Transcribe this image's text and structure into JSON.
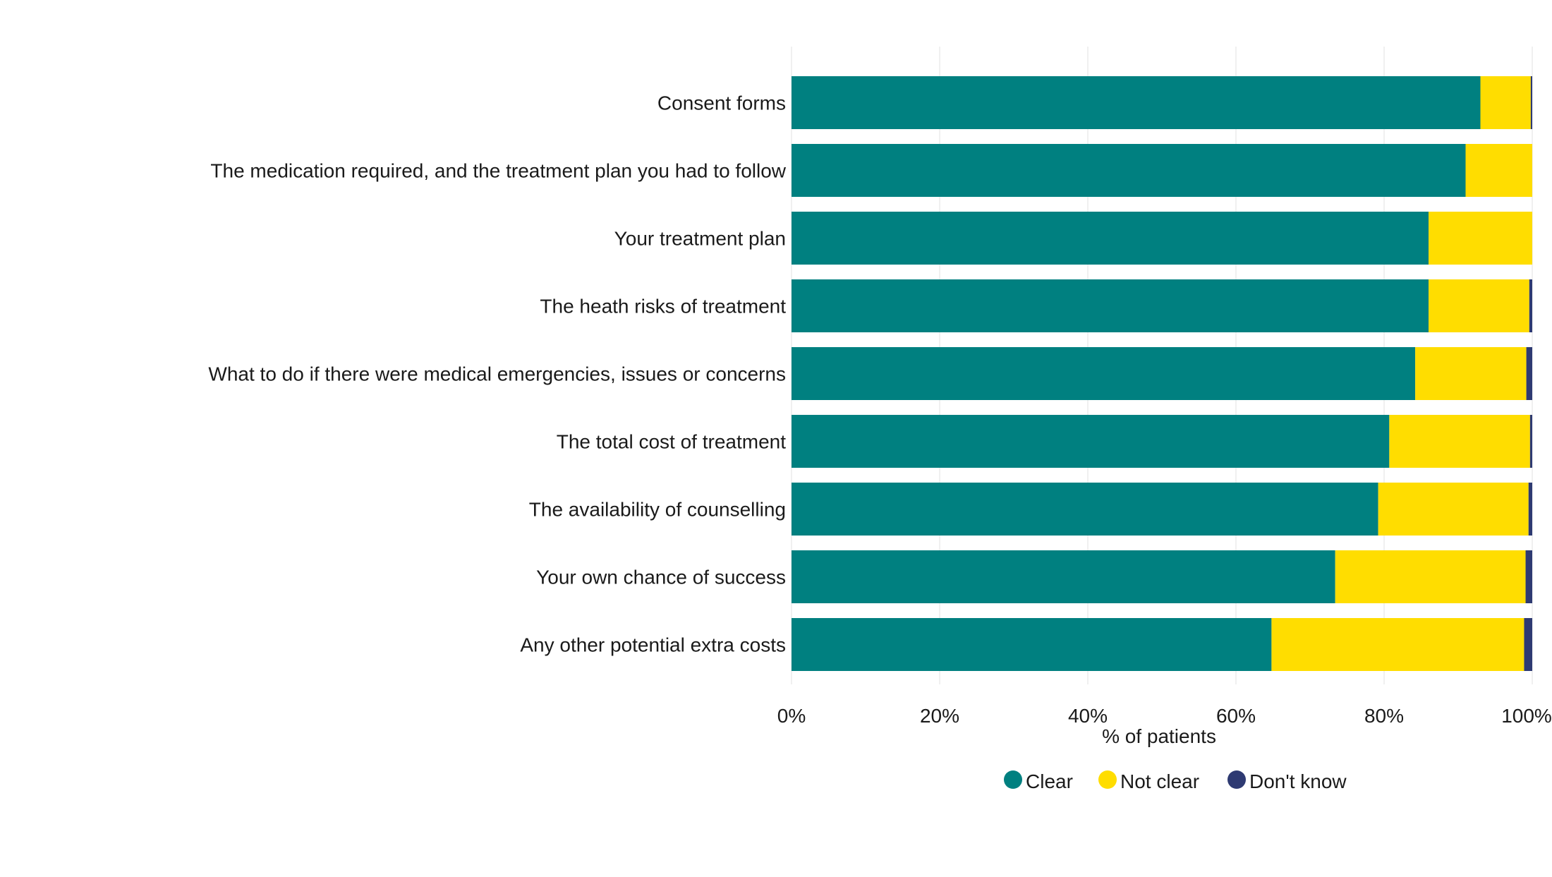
{
  "chart_data": {
    "type": "bar",
    "orientation": "horizontal",
    "stacked": true,
    "categories": [
      "Consent forms",
      "The medication required, and the treatment plan you had to follow",
      "Your treatment plan",
      "The heath risks of treatment",
      "What to do if there were medical emergencies, issues or concerns",
      "The total cost of treatment",
      "The availability of counselling",
      "Your own chance of success",
      "Any other potential extra costs"
    ],
    "series": [
      {
        "name": "Clear",
        "color": "#008080",
        "values": [
          93,
          91,
          86,
          86,
          84.2,
          80.7,
          79.2,
          73.4,
          64.8
        ]
      },
      {
        "name": "Not clear",
        "color": "#FFDD00",
        "values": [
          6.8,
          9,
          14,
          13.6,
          15,
          19,
          20.3,
          25.7,
          34.1
        ]
      },
      {
        "name": "Don't know",
        "color": "#2E3A72",
        "values": [
          0.2,
          0,
          0,
          0.4,
          0.8,
          0.3,
          0.5,
          0.9,
          1.1
        ]
      }
    ],
    "xlabel": "% of patients",
    "ylabel": "",
    "xlim": [
      0,
      100
    ],
    "xticks": [
      "0%",
      "20%",
      "40%",
      "60%",
      "80%",
      "100%"
    ],
    "grid": true,
    "legend": "bottom-center"
  }
}
